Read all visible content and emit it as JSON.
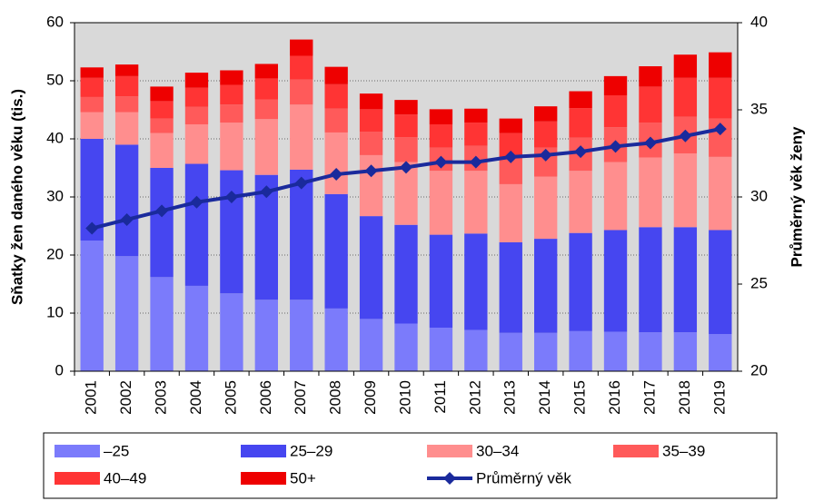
{
  "chart_data": {
    "type": "bar",
    "stacked": true,
    "categories": [
      "2001",
      "2002",
      "2003",
      "2004",
      "2005",
      "2006",
      "2007",
      "2008",
      "2009",
      "2010",
      "2011",
      "2012",
      "2013",
      "2014",
      "2015",
      "2016",
      "2017",
      "2018",
      "2019"
    ],
    "ylabel": "Sňatky žen daného věku (tis.)",
    "y2label": "Průměrný věk ženy",
    "ylim": [
      0,
      60
    ],
    "yticks": [
      0,
      10,
      20,
      30,
      40,
      50,
      60
    ],
    "y2lim": [
      20,
      40
    ],
    "y2ticks": [
      20,
      25,
      30,
      35,
      40
    ],
    "grid": true,
    "series": [
      {
        "name": "–25",
        "color": "#7b7bfb",
        "values": [
          22.5,
          19.8,
          16.2,
          14.7,
          13.4,
          12.3,
          12.3,
          10.8,
          9.0,
          8.2,
          7.5,
          7.1,
          6.6,
          6.6,
          6.9,
          6.8,
          6.7,
          6.7,
          6.4
        ]
      },
      {
        "name": "25–29",
        "color": "#4646f0",
        "values": [
          17.5,
          19.2,
          18.8,
          21.0,
          21.2,
          21.5,
          22.4,
          19.7,
          17.7,
          17.0,
          16.0,
          16.6,
          15.6,
          16.2,
          16.9,
          17.5,
          18.1,
          18.1,
          17.9
        ]
      },
      {
        "name": "30–34",
        "color": "#ff8e8e",
        "values": [
          4.6,
          5.6,
          6.0,
          6.8,
          8.2,
          9.6,
          11.2,
          10.6,
          10.5,
          10.8,
          11.0,
          10.8,
          10.0,
          10.7,
          10.7,
          11.7,
          12.0,
          12.7,
          12.6
        ]
      },
      {
        "name": "35–39",
        "color": "#ff5a5a",
        "values": [
          2.6,
          2.7,
          2.5,
          3.0,
          3.1,
          3.4,
          4.3,
          4.1,
          4.0,
          4.3,
          4.0,
          4.3,
          4.6,
          5.0,
          5.7,
          6.0,
          6.0,
          6.3,
          6.6
        ]
      },
      {
        "name": "40–49",
        "color": "#ff3434",
        "values": [
          3.3,
          3.5,
          3.0,
          3.3,
          3.4,
          3.6,
          4.1,
          4.2,
          3.9,
          3.9,
          4.0,
          4.0,
          4.2,
          4.5,
          5.1,
          5.5,
          6.2,
          6.7,
          7.0
        ]
      },
      {
        "name": "50+",
        "color": "#ee0000",
        "values": [
          1.8,
          2.0,
          2.5,
          2.6,
          2.5,
          2.5,
          2.8,
          3.0,
          2.7,
          2.5,
          2.6,
          2.4,
          2.5,
          2.6,
          2.9,
          3.3,
          3.5,
          4.0,
          4.4
        ]
      },
      {
        "name": "Průměrný věk",
        "color": "#1a2a9c",
        "axis": "y2",
        "values": [
          28.2,
          28.7,
          29.2,
          29.7,
          30.0,
          30.3,
          30.8,
          31.3,
          31.5,
          31.7,
          32.0,
          32.0,
          32.3,
          32.4,
          32.6,
          32.9,
          33.1,
          33.5,
          33.9
        ]
      }
    ]
  }
}
